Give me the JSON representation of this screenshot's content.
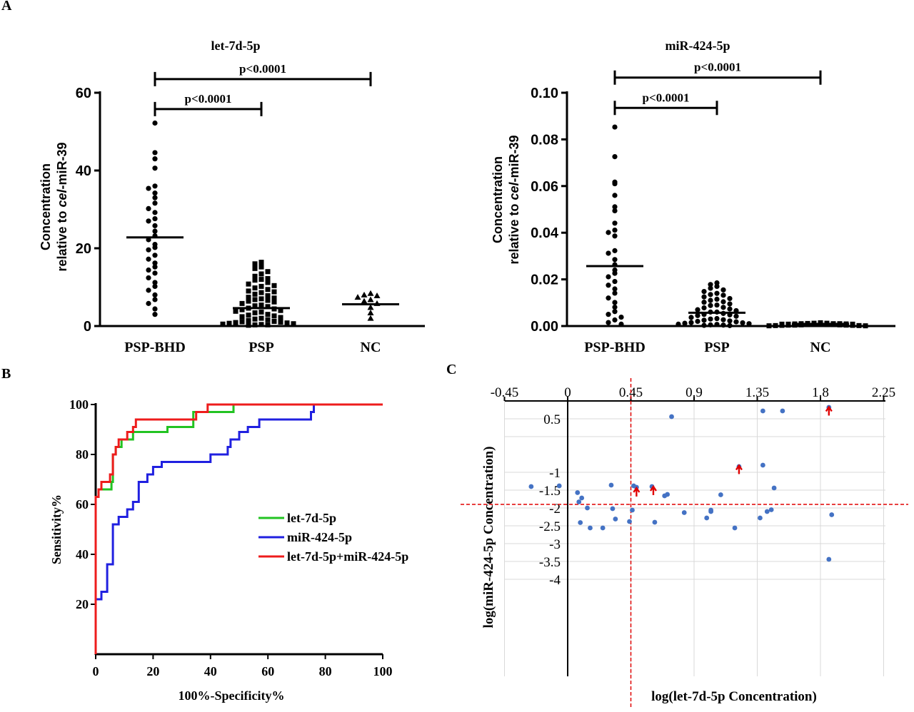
{
  "panel_labels": {
    "a": "A",
    "b": "B",
    "c": "C"
  },
  "chart_data": [
    {
      "id": "A1",
      "type": "scatter",
      "title": "let-7d-5p",
      "ylabel_line1": "Concentration",
      "ylabel_line2_pre": "relative to ",
      "ylabel_line2_italic": "cel",
      "ylabel_line2_post": "-miR-39",
      "categories": [
        "PSP-BHD",
        "PSP",
        "NC"
      ],
      "ylim": [
        0,
        60
      ],
      "yticks": [
        "0",
        "20",
        "40",
        "60"
      ],
      "ytick_values": [
        0,
        20,
        40,
        60
      ],
      "means": [
        22.8,
        4.6,
        5.6
      ],
      "markers": [
        "circle",
        "square",
        "triangle"
      ],
      "groups": [
        [
          52.2,
          44.6,
          43.0,
          40.6,
          36.0,
          35.4,
          34.2,
          33.0,
          31.6,
          30.2,
          29.2,
          27.6,
          27.0,
          25.8,
          24.4,
          23.2,
          22.2,
          21.0,
          20.2,
          19.6,
          18.2,
          17.2,
          16.2,
          15.2,
          14.4,
          13.6,
          12.4,
          11.2,
          10.2,
          9.2,
          8.0,
          6.8,
          5.8,
          4.4,
          3.0
        ],
        [
          16.4,
          16.0,
          15.2,
          14.8,
          14.0,
          13.4,
          12.8,
          12.2,
          11.8,
          11.2,
          10.8,
          10.2,
          9.8,
          9.4,
          9.0,
          8.6,
          8.2,
          7.8,
          7.4,
          7.0,
          6.6,
          6.2,
          5.8,
          5.4,
          5.0,
          4.6,
          4.2,
          3.8,
          3.4,
          3.0,
          2.8,
          2.4,
          2.0,
          1.8,
          1.4,
          1.2,
          1.0,
          0.8,
          0.6,
          0.4,
          0.3,
          0.2,
          8.8,
          7.2,
          6.4,
          5.2,
          4.4,
          3.6,
          2.6,
          1.6,
          0.9,
          0.5,
          10.4,
          12.0,
          6.8,
          4.0,
          2.2,
          1.1,
          0.7,
          0.3
        ],
        [
          8.4,
          8.0,
          7.8,
          7.4,
          6.8,
          6.4,
          5.8,
          4.8,
          3.4,
          2.0
        ]
      ],
      "brackets": [
        {
          "from": 0,
          "to": 1,
          "label": "p<0.0001",
          "y": 55.8
        },
        {
          "from": 0,
          "to": 2,
          "label": "p<0.0001",
          "y": 63.5
        }
      ]
    },
    {
      "id": "A2",
      "type": "scatter",
      "title": "miR-424-5p",
      "ylabel_line1": "Concentration",
      "ylabel_line2_pre": "relative to ",
      "ylabel_line2_italic": "cel",
      "ylabel_line2_post": "-miR-39",
      "categories": [
        "PSP-BHD",
        "PSP",
        "NC"
      ],
      "ylim": [
        0,
        0.1
      ],
      "yticks": [
        "0.00",
        "0.02",
        "0.04",
        "0.06",
        "0.08",
        "0.10"
      ],
      "ytick_values": [
        0,
        0.02,
        0.04,
        0.06,
        0.08,
        0.1
      ],
      "means": [
        0.0257,
        0.0057,
        0.0009
      ],
      "markers": [
        "circle",
        "circle",
        "square"
      ],
      "groups": [
        [
          0.0853,
          0.0726,
          0.0617,
          0.061,
          0.056,
          0.0511,
          0.0494,
          0.0441,
          0.0411,
          0.0401,
          0.0386,
          0.0323,
          0.0312,
          0.0285,
          0.0263,
          0.024,
          0.0226,
          0.0211,
          0.0191,
          0.0175,
          0.0159,
          0.0141,
          0.012,
          0.0101,
          0.0081,
          0.0062,
          0.005,
          0.0038,
          0.0026,
          0.0015,
          0.0008
        ],
        [
          0.0185,
          0.0178,
          0.017,
          0.0162,
          0.0155,
          0.0148,
          0.014,
          0.0132,
          0.0125,
          0.0118,
          0.011,
          0.0102,
          0.0095,
          0.0088,
          0.008,
          0.0073,
          0.0066,
          0.006,
          0.0054,
          0.0048,
          0.0042,
          0.0037,
          0.0032,
          0.0027,
          0.0022,
          0.0018,
          0.0014,
          0.001,
          0.0007,
          0.0004,
          0.0002,
          0.0115,
          0.009,
          0.007,
          0.005,
          0.003,
          0.0015,
          0.0005,
          0.0135,
          0.006,
          0.0025,
          0.0008,
          0.0104,
          0.0078,
          0.0045,
          0.002,
          0.0012,
          0.0003
        ],
        [
          0.0014,
          0.0012,
          0.0011,
          0.001,
          0.001,
          0.0009,
          0.0009,
          0.0008,
          0.0008,
          0.0007,
          0.0007,
          0.0006,
          0.0006,
          0.0005,
          0.0005,
          0.0004,
          0.0004,
          0.0003,
          0.0003,
          0.0002,
          0.0002,
          0.0001,
          0.0001,
          0.001,
          0.0008,
          0.0006,
          0.0004,
          0.0012
        ]
      ],
      "brackets": [
        {
          "from": 0,
          "to": 1,
          "label": "p<0.0001",
          "y": 0.0935
        },
        {
          "from": 0,
          "to": 2,
          "label": "p<0.0001",
          "y": 0.1065
        }
      ]
    },
    {
      "id": "B",
      "type": "line",
      "xlabel": "100%-Specificity%",
      "ylabel": "Sensitivity%",
      "xlim": [
        0,
        100
      ],
      "ylim": [
        0,
        100
      ],
      "xticks": [
        "0",
        "20",
        "40",
        "60",
        "80",
        "100"
      ],
      "xtick_values": [
        0,
        20,
        40,
        60,
        80,
        100
      ],
      "yticks": [
        "20",
        "40",
        "60",
        "80",
        "100"
      ],
      "ytick_values": [
        20,
        40,
        60,
        80,
        100
      ],
      "legend_position": "right",
      "series": [
        {
          "name": "let-7d-5p",
          "color": "#22c322",
          "points": [
            [
              0,
              0
            ],
            [
              0,
              63
            ],
            [
              1,
              63
            ],
            [
              1,
              66
            ],
            [
              5.5,
              66
            ],
            [
              5.5,
              69
            ],
            [
              6,
              69
            ],
            [
              6,
              80
            ],
            [
              7,
              80
            ],
            [
              7,
              83
            ],
            [
              9,
              83
            ],
            [
              9,
              86
            ],
            [
              13,
              86
            ],
            [
              13,
              89
            ],
            [
              25,
              89
            ],
            [
              25,
              91
            ],
            [
              34,
              91
            ],
            [
              34,
              97
            ],
            [
              48,
              97
            ],
            [
              48,
              100
            ],
            [
              100,
              100
            ]
          ]
        },
        {
          "name": "miR-424-5p",
          "color": "#2020e0",
          "points": [
            [
              0,
              0
            ],
            [
              0,
              22
            ],
            [
              2,
              22
            ],
            [
              2,
              25
            ],
            [
              4,
              25
            ],
            [
              4,
              36
            ],
            [
              6,
              36
            ],
            [
              6,
              52
            ],
            [
              8,
              52
            ],
            [
              8,
              55
            ],
            [
              11,
              55
            ],
            [
              11,
              58
            ],
            [
              13,
              58
            ],
            [
              13,
              61
            ],
            [
              15,
              61
            ],
            [
              15,
              69
            ],
            [
              18,
              69
            ],
            [
              18,
              72
            ],
            [
              20,
              72
            ],
            [
              20,
              75
            ],
            [
              23,
              75
            ],
            [
              23,
              77
            ],
            [
              40,
              77
            ],
            [
              40,
              80
            ],
            [
              46,
              80
            ],
            [
              46,
              83
            ],
            [
              47,
              83
            ],
            [
              47,
              86
            ],
            [
              50,
              86
            ],
            [
              50,
              89
            ],
            [
              53,
              89
            ],
            [
              53,
              91
            ],
            [
              57,
              91
            ],
            [
              57,
              94
            ],
            [
              75,
              94
            ],
            [
              75,
              97
            ],
            [
              76,
              97
            ],
            [
              76,
              100
            ],
            [
              100,
              100
            ]
          ]
        },
        {
          "name": "let-7d-5p+miR-424-5p",
          "color": "#ee1c1c",
          "points": [
            [
              0,
              0
            ],
            [
              0,
              63
            ],
            [
              1,
              63
            ],
            [
              1,
              66
            ],
            [
              2,
              66
            ],
            [
              2,
              69
            ],
            [
              5,
              69
            ],
            [
              5,
              72
            ],
            [
              6,
              72
            ],
            [
              6,
              80
            ],
            [
              7,
              80
            ],
            [
              7,
              83
            ],
            [
              8,
              83
            ],
            [
              8,
              86
            ],
            [
              11,
              86
            ],
            [
              11,
              89
            ],
            [
              13,
              89
            ],
            [
              13,
              91
            ],
            [
              14,
              91
            ],
            [
              14,
              94
            ],
            [
              35,
              94
            ],
            [
              35,
              97
            ],
            [
              39,
              97
            ],
            [
              39,
              100
            ],
            [
              100,
              100
            ]
          ]
        }
      ]
    },
    {
      "id": "C",
      "type": "scatter",
      "xlabel": "log(let-7d-5p Concentration)",
      "ylabel": "log(miR-424-5p Concentration)",
      "xlim": [
        -0.45,
        2.25
      ],
      "ylim": [
        -4,
        0.8
      ],
      "xticks": [
        "-0.45",
        "0",
        "0.45",
        "0.9",
        "1.35",
        "1.8",
        "2.25"
      ],
      "xtick_values": [
        -0.45,
        0,
        0.45,
        0.9,
        1.35,
        1.8,
        2.25
      ],
      "yticks": [
        "0.5",
        "-1",
        "-1.5",
        "-2",
        "-2.5",
        "-3",
        "-3.5",
        "-4"
      ],
      "ytick_values": [
        0.5,
        -1,
        -1.5,
        -2,
        -2.5,
        -3,
        -3.5,
        -4
      ],
      "cutoff_x": 0.45,
      "cutoff_y": -1.9,
      "point_color": "#4472c4",
      "arrow_color": "#e00000",
      "points": [
        [
          -0.26,
          -1.4
        ],
        [
          -0.06,
          -1.38
        ],
        [
          0.07,
          -1.57
        ],
        [
          0.08,
          -1.83
        ],
        [
          0.1,
          -1.72
        ],
        [
          0.09,
          -2.41
        ],
        [
          0.14,
          -2.0
        ],
        [
          0.16,
          -2.56
        ],
        [
          0.25,
          -2.56
        ],
        [
          0.31,
          -1.36
        ],
        [
          0.32,
          -2.02
        ],
        [
          0.34,
          -2.31
        ],
        [
          0.44,
          -2.38
        ],
        [
          0.46,
          -2.06
        ],
        [
          0.47,
          -1.38
        ],
        [
          0.49,
          -1.42
        ],
        [
          0.6,
          -1.4
        ],
        [
          0.62,
          -2.4
        ],
        [
          0.69,
          -1.66
        ],
        [
          0.71,
          -1.62
        ],
        [
          0.74,
          0.56
        ],
        [
          0.83,
          -2.13
        ],
        [
          0.99,
          -2.28
        ],
        [
          1.02,
          -2.1
        ],
        [
          1.02,
          -2.06
        ],
        [
          1.09,
          -1.63
        ],
        [
          1.19,
          -2.56
        ],
        [
          1.22,
          -0.84
        ],
        [
          1.37,
          -2.28
        ],
        [
          1.39,
          0.72
        ],
        [
          1.39,
          -0.8
        ],
        [
          1.42,
          -2.1
        ],
        [
          1.45,
          -2.05
        ],
        [
          1.47,
          -1.44
        ],
        [
          1.53,
          0.72
        ],
        [
          1.86,
          0.82
        ],
        [
          1.86,
          -3.44
        ],
        [
          1.88,
          -2.19
        ]
      ],
      "arrows": [
        [
          0.49,
          -1.56
        ],
        [
          0.61,
          -1.52
        ],
        [
          1.22,
          -0.93
        ],
        [
          1.86,
          0.71
        ]
      ]
    }
  ]
}
